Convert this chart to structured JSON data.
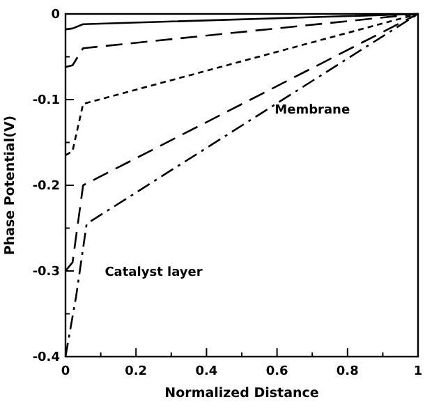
{
  "chart_data": {
    "type": "line",
    "xlabel": "Normalized Distance",
    "ylabel": "Phase Potential(V)",
    "xlim": [
      0,
      1
    ],
    "ylim": [
      -0.4,
      0
    ],
    "xticks": [
      0,
      {
        "value": 0.1,
        "label": null
      },
      0.2,
      {
        "value": 0.3,
        "label": null
      },
      0.4,
      {
        "value": 0.5,
        "label": null
      },
      0.6,
      {
        "value": 0.7,
        "label": null
      },
      0.8,
      {
        "value": 0.9,
        "label": null
      },
      1
    ],
    "yticks": [
      -0.4,
      {
        "value": -0.35,
        "label": null
      },
      -0.3,
      {
        "value": -0.25,
        "label": null
      },
      -0.2,
      {
        "value": -0.15,
        "label": null
      },
      -0.1,
      {
        "value": -0.05,
        "label": null
      },
      0
    ],
    "grid": false,
    "annotations": [
      "Membrane",
      "Catalyst layer"
    ],
    "series": [
      {
        "color": "#000000",
        "line_style": "solid",
        "x": [
          0,
          0.02,
          0.05,
          1
        ],
        "values": [
          -0.018,
          -0.017,
          -0.012,
          0
        ]
      },
      {
        "color": "#000000",
        "line_style": "dashed",
        "x": [
          0,
          0.02,
          0.05,
          1
        ],
        "values": [
          -0.062,
          -0.06,
          -0.04,
          0
        ]
      },
      {
        "color": "#000000",
        "line_style": "dotted",
        "x": [
          0,
          0.02,
          0.05,
          1
        ],
        "values": [
          -0.165,
          -0.16,
          -0.105,
          0
        ]
      },
      {
        "color": "#000000",
        "line_style": "dashed",
        "x": [
          0,
          0.02,
          0.05,
          1
        ],
        "values": [
          -0.3,
          -0.29,
          -0.2,
          0
        ]
      },
      {
        "color": "#000000",
        "line_style": "dashdot",
        "x": [
          0,
          0.03,
          0.06,
          1
        ],
        "values": [
          -0.4,
          -0.33,
          -0.245,
          0
        ]
      }
    ]
  }
}
